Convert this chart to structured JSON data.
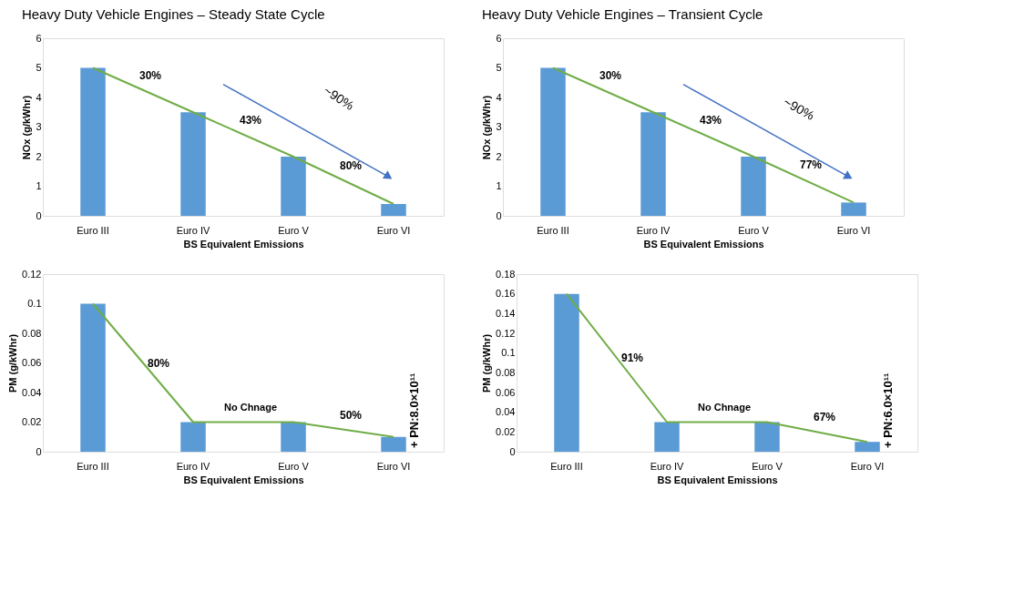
{
  "chart_data": [
    {
      "type": "bar",
      "title": "Heavy Duty Vehicle Engines – Steady State Cycle",
      "xlabel": "BS Equivalent Emissions",
      "ylabel": "NOx (g/kWhr)",
      "categories": [
        "Euro III",
        "Euro IV",
        "Euro V",
        "Euro VI"
      ],
      "series": [
        {
          "color": "#5b9bd5",
          "values": [
            5,
            3.5,
            2,
            0.4
          ]
        },
        {
          "type": "line",
          "color": "#70ad47",
          "values": [
            5,
            3.5,
            2,
            0.4
          ]
        }
      ],
      "ylim": [
        0,
        6
      ],
      "yticks": [
        0,
        1,
        2,
        3,
        4,
        5,
        6
      ],
      "grid": false,
      "annotations": [
        "30%",
        "43%",
        "80%",
        "~90%"
      ]
    },
    {
      "type": "bar",
      "title": "Heavy Duty Vehicle Engines – Transient Cycle",
      "xlabel": "BS Equivalent Emissions",
      "ylabel": "NOx (g/kWhr)",
      "categories": [
        "Euro III",
        "Euro IV",
        "Euro V",
        "Euro VI"
      ],
      "series": [
        {
          "color": "#5b9bd5",
          "values": [
            5,
            3.5,
            2,
            0.45
          ]
        },
        {
          "type": "line",
          "color": "#70ad47",
          "values": [
            5,
            3.5,
            2,
            0.45
          ]
        }
      ],
      "ylim": [
        0,
        6
      ],
      "yticks": [
        0,
        1,
        2,
        3,
        4,
        5,
        6
      ],
      "grid": false,
      "annotations": [
        "30%",
        "43%",
        "77%",
        "~90%"
      ]
    },
    {
      "type": "bar",
      "xlabel": "BS Equivalent Emissions",
      "ylabel": "PM (g/kWhr)",
      "categories": [
        "Euro III",
        "Euro IV",
        "Euro V",
        "Euro VI"
      ],
      "series": [
        {
          "color": "#5b9bd5",
          "values": [
            0.1,
            0.02,
            0.02,
            0.01
          ]
        },
        {
          "type": "line",
          "color": "#70ad47",
          "values": [
            0.1,
            0.02,
            0.02,
            0.01
          ]
        }
      ],
      "ylim": [
        0,
        0.12
      ],
      "yticks": [
        0,
        0.02,
        0.04,
        0.06,
        0.08,
        0.1,
        0.12
      ],
      "grid": false,
      "annotations": [
        "80%",
        "No Chnage",
        "50%",
        "+ PN:8.0×10¹¹"
      ]
    },
    {
      "type": "bar",
      "xlabel": "BS Equivalent Emissions",
      "ylabel": "PM (g/kWhr)",
      "categories": [
        "Euro III",
        "Euro IV",
        "Euro V",
        "Euro VI"
      ],
      "series": [
        {
          "color": "#5b9bd5",
          "values": [
            0.16,
            0.03,
            0.03,
            0.01
          ]
        },
        {
          "type": "line",
          "color": "#70ad47",
          "values": [
            0.16,
            0.03,
            0.03,
            0.01
          ]
        }
      ],
      "ylim": [
        0,
        0.18
      ],
      "yticks": [
        0,
        0.02,
        0.04,
        0.06,
        0.08,
        0.1,
        0.12,
        0.14,
        0.16,
        0.18
      ],
      "grid": false,
      "annotations": [
        "91%",
        "No Chnage",
        "67%",
        "+ PN:6.0×10¹¹"
      ]
    }
  ]
}
